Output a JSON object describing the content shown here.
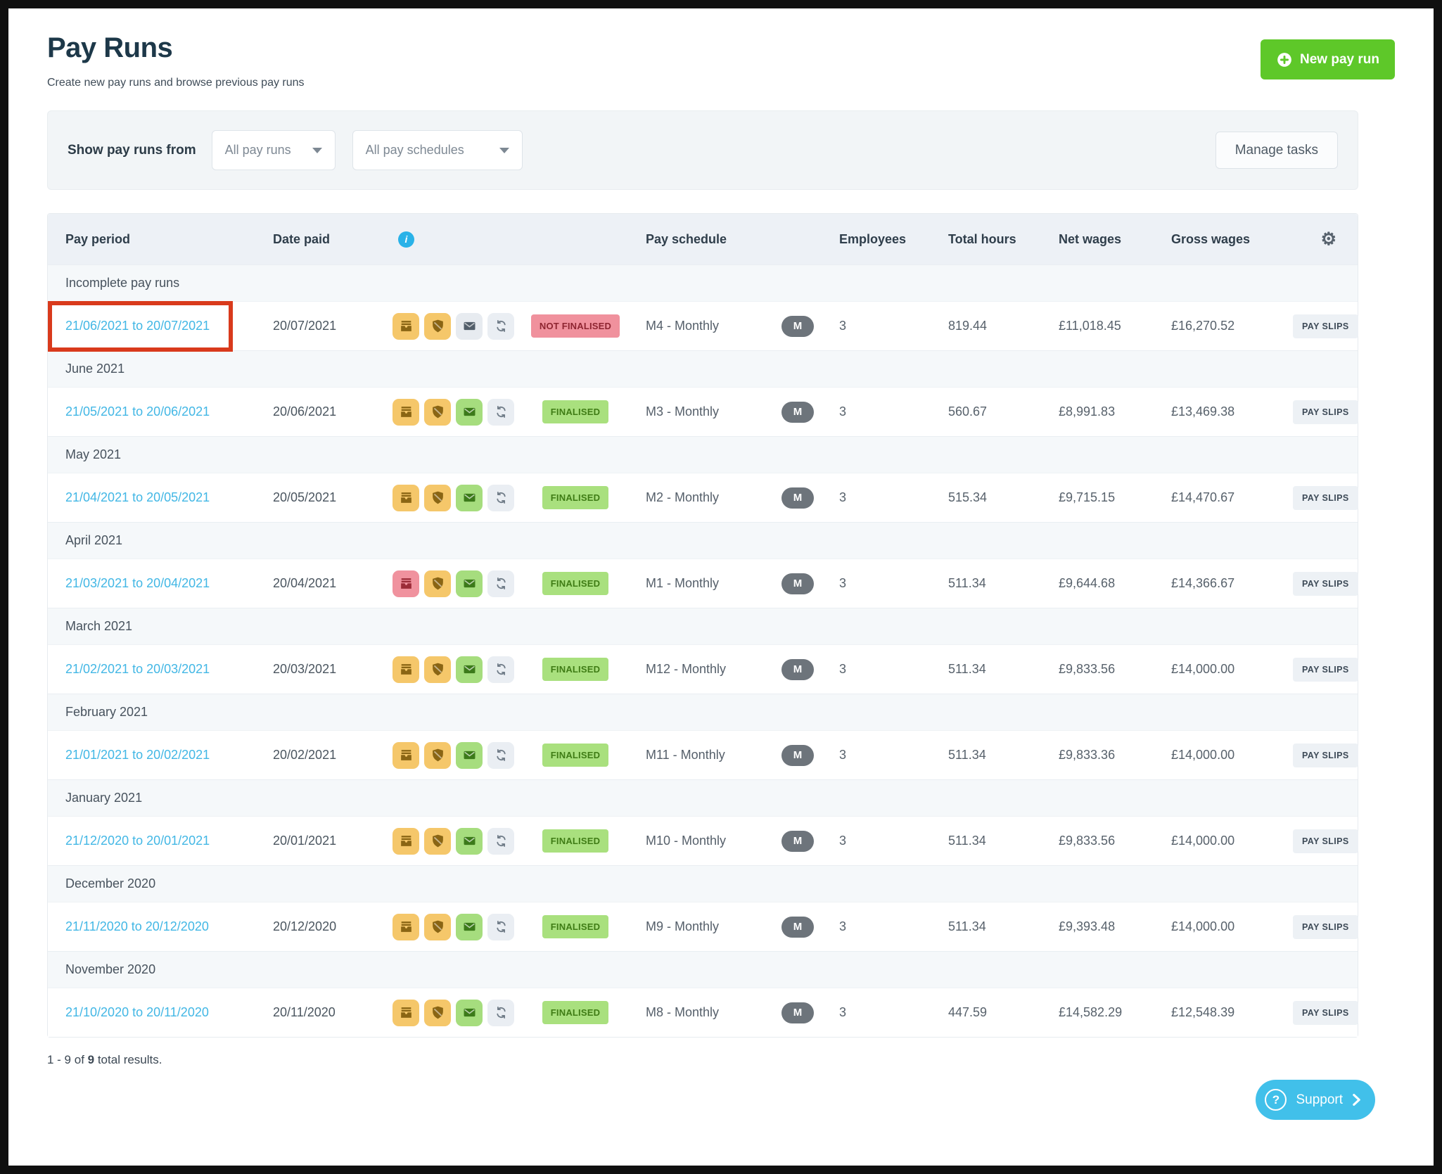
{
  "page": {
    "title": "Pay Runs",
    "subtitle": "Create new pay runs and browse previous pay runs",
    "results": {
      "prefix": "1 - 9 of ",
      "total": "9",
      "suffix": " total results."
    }
  },
  "header_actions": {
    "new_pay_run": "New pay run"
  },
  "filters": {
    "label": "Show pay runs from",
    "pay_runs": "All pay runs",
    "pay_schedules": "All pay schedules",
    "manage_tasks": "Manage tasks"
  },
  "support": {
    "label": "Support"
  },
  "table": {
    "columns": {
      "pay_period": "Pay period",
      "date_paid": "Date paid",
      "pay_schedule": "Pay schedule",
      "employees": "Employees",
      "total_hours": "Total hours",
      "net_wages": "Net wages",
      "gross_wages": "Gross wages"
    },
    "header_icons": [
      "info-icon",
      "gear-icon"
    ],
    "payslips_label": "PAY SLIPS",
    "groups": [
      {
        "section": "Incomplete pay runs",
        "row": {
          "pay_period": "21/06/2021 to 20/07/2021",
          "date_paid": "20/07/2021",
          "icons": [
            {
              "name": "payslip-drawer-icon",
              "glyph": "payslips",
              "variant": "amber"
            },
            {
              "name": "shield-icon",
              "glyph": "shield",
              "variant": "amber"
            },
            {
              "name": "envelope-icon",
              "glyph": "envelope",
              "variant": "slate"
            },
            {
              "name": "sync-icon",
              "glyph": "sync",
              "variant": "gray"
            }
          ],
          "status": "NOT FINALISED",
          "status_type": "not-finalised",
          "pay_schedule": "M4 - Monthly",
          "schedule_badge": "M",
          "employees": "3",
          "total_hours": "819.44",
          "net_wages": "£11,018.45",
          "gross_wages": "£16,270.52",
          "highlighted": true
        }
      },
      {
        "section": "June 2021",
        "row": {
          "pay_period": "21/05/2021 to 20/06/2021",
          "date_paid": "20/06/2021",
          "icons": [
            {
              "name": "payslip-drawer-icon",
              "glyph": "payslips",
              "variant": "amber"
            },
            {
              "name": "shield-icon",
              "glyph": "shield",
              "variant": "amber"
            },
            {
              "name": "envelope-icon",
              "glyph": "envelope",
              "variant": "green"
            },
            {
              "name": "sync-icon",
              "glyph": "sync",
              "variant": "gray"
            }
          ],
          "status": "FINALISED",
          "status_type": "finalised",
          "pay_schedule": "M3 - Monthly",
          "schedule_badge": "M",
          "employees": "3",
          "total_hours": "560.67",
          "net_wages": "£8,991.83",
          "gross_wages": "£13,469.38",
          "highlighted": false
        }
      },
      {
        "section": "May 2021",
        "row": {
          "pay_period": "21/04/2021 to 20/05/2021",
          "date_paid": "20/05/2021",
          "icons": [
            {
              "name": "payslip-drawer-icon",
              "glyph": "payslips",
              "variant": "amber"
            },
            {
              "name": "shield-icon",
              "glyph": "shield",
              "variant": "amber"
            },
            {
              "name": "envelope-icon",
              "glyph": "envelope",
              "variant": "green"
            },
            {
              "name": "sync-icon",
              "glyph": "sync",
              "variant": "gray"
            }
          ],
          "status": "FINALISED",
          "status_type": "finalised",
          "pay_schedule": "M2 - Monthly",
          "schedule_badge": "M",
          "employees": "3",
          "total_hours": "515.34",
          "net_wages": "£9,715.15",
          "gross_wages": "£14,470.67",
          "highlighted": false
        }
      },
      {
        "section": "April 2021",
        "row": {
          "pay_period": "21/03/2021 to 20/04/2021",
          "date_paid": "20/04/2021",
          "icons": [
            {
              "name": "payslip-drawer-icon",
              "glyph": "payslips",
              "variant": "red"
            },
            {
              "name": "shield-icon",
              "glyph": "shield",
              "variant": "amber"
            },
            {
              "name": "envelope-icon",
              "glyph": "envelope",
              "variant": "green"
            },
            {
              "name": "sync-icon",
              "glyph": "sync",
              "variant": "gray"
            }
          ],
          "status": "FINALISED",
          "status_type": "finalised",
          "pay_schedule": "M1 - Monthly",
          "schedule_badge": "M",
          "employees": "3",
          "total_hours": "511.34",
          "net_wages": "£9,644.68",
          "gross_wages": "£14,366.67",
          "highlighted": false
        }
      },
      {
        "section": "March 2021",
        "row": {
          "pay_period": "21/02/2021 to 20/03/2021",
          "date_paid": "20/03/2021",
          "icons": [
            {
              "name": "payslip-drawer-icon",
              "glyph": "payslips",
              "variant": "amber"
            },
            {
              "name": "shield-icon",
              "glyph": "shield",
              "variant": "amber"
            },
            {
              "name": "envelope-icon",
              "glyph": "envelope",
              "variant": "green"
            },
            {
              "name": "sync-icon",
              "glyph": "sync",
              "variant": "gray"
            }
          ],
          "status": "FINALISED",
          "status_type": "finalised",
          "pay_schedule": "M12 - Monthly",
          "schedule_badge": "M",
          "employees": "3",
          "total_hours": "511.34",
          "net_wages": "£9,833.56",
          "gross_wages": "£14,000.00",
          "highlighted": false
        }
      },
      {
        "section": "February 2021",
        "row": {
          "pay_period": "21/01/2021 to 20/02/2021",
          "date_paid": "20/02/2021",
          "icons": [
            {
              "name": "payslip-drawer-icon",
              "glyph": "payslips",
              "variant": "amber"
            },
            {
              "name": "shield-icon",
              "glyph": "shield",
              "variant": "amber"
            },
            {
              "name": "envelope-icon",
              "glyph": "envelope",
              "variant": "green"
            },
            {
              "name": "sync-icon",
              "glyph": "sync",
              "variant": "gray"
            }
          ],
          "status": "FINALISED",
          "status_type": "finalised",
          "pay_schedule": "M11 - Monthly",
          "schedule_badge": "M",
          "employees": "3",
          "total_hours": "511.34",
          "net_wages": "£9,833.36",
          "gross_wages": "£14,000.00",
          "highlighted": false
        }
      },
      {
        "section": "January 2021",
        "row": {
          "pay_period": "21/12/2020 to 20/01/2021",
          "date_paid": "20/01/2021",
          "icons": [
            {
              "name": "payslip-drawer-icon",
              "glyph": "payslips",
              "variant": "amber"
            },
            {
              "name": "shield-icon",
              "glyph": "shield",
              "variant": "amber"
            },
            {
              "name": "envelope-icon",
              "glyph": "envelope",
              "variant": "green"
            },
            {
              "name": "sync-icon",
              "glyph": "sync",
              "variant": "gray"
            }
          ],
          "status": "FINALISED",
          "status_type": "finalised",
          "pay_schedule": "M10 - Monthly",
          "schedule_badge": "M",
          "employees": "3",
          "total_hours": "511.34",
          "net_wages": "£9,833.56",
          "gross_wages": "£14,000.00",
          "highlighted": false
        }
      },
      {
        "section": "December 2020",
        "row": {
          "pay_period": "21/11/2020 to 20/12/2020",
          "date_paid": "20/12/2020",
          "icons": [
            {
              "name": "payslip-drawer-icon",
              "glyph": "payslips",
              "variant": "amber"
            },
            {
              "name": "shield-icon",
              "glyph": "shield",
              "variant": "amber"
            },
            {
              "name": "envelope-icon",
              "glyph": "envelope",
              "variant": "green"
            },
            {
              "name": "sync-icon",
              "glyph": "sync",
              "variant": "gray"
            }
          ],
          "status": "FINALISED",
          "status_type": "finalised",
          "pay_schedule": "M9 - Monthly",
          "schedule_badge": "M",
          "employees": "3",
          "total_hours": "511.34",
          "net_wages": "£9,393.48",
          "gross_wages": "£14,000.00",
          "highlighted": false
        }
      },
      {
        "section": "November 2020",
        "row": {
          "pay_period": "21/10/2020 to 20/11/2020",
          "date_paid": "20/11/2020",
          "icons": [
            {
              "name": "payslip-drawer-icon",
              "glyph": "payslips",
              "variant": "amber"
            },
            {
              "name": "shield-icon",
              "glyph": "shield",
              "variant": "amber"
            },
            {
              "name": "envelope-icon",
              "glyph": "envelope",
              "variant": "green"
            },
            {
              "name": "sync-icon",
              "glyph": "sync",
              "variant": "gray"
            }
          ],
          "status": "FINALISED",
          "status_type": "finalised",
          "pay_schedule": "M8 - Monthly",
          "schedule_badge": "M",
          "employees": "3",
          "total_hours": "447.59",
          "net_wages": "£14,582.29",
          "gross_wages": "£12,548.39",
          "highlighted": false
        }
      }
    ]
  },
  "colors": {
    "accent_green": "#5ec829",
    "accent_blue": "#41c0ea",
    "link_blue": "#42b7e5",
    "status_finalised_bg": "#a9e07e",
    "status_finalised_text": "#3f7c15",
    "status_not_finalised_bg": "#f0919d",
    "status_not_finalised_text": "#8e2531",
    "annotation_highlight_red": "#d93a1c"
  }
}
